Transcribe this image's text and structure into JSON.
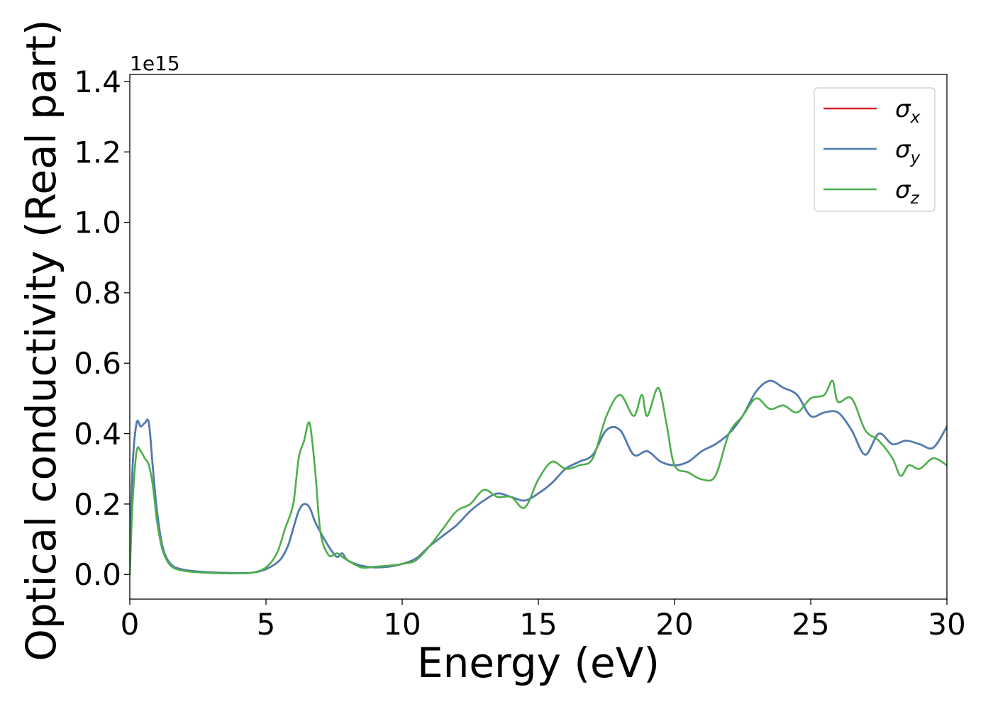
{
  "chart_data": {
    "type": "line",
    "xlabel": "Energy (eV)",
    "ylabel": "Optical conductivity (Real part)",
    "y_offset_label": "1e15",
    "xlim": [
      0,
      30
    ],
    "ylim": [
      -0.07,
      1.42
    ],
    "x_ticks": [
      0,
      5,
      10,
      15,
      20,
      25,
      30
    ],
    "x_tick_labels": [
      "0",
      "5",
      "10",
      "15",
      "20",
      "25",
      "30"
    ],
    "y_ticks": [
      0.0,
      0.2,
      0.4,
      0.6,
      0.8,
      1.0,
      1.2,
      1.4
    ],
    "y_tick_labels": [
      "0.0",
      "0.2",
      "0.4",
      "0.6",
      "0.8",
      "1.0",
      "1.2",
      "1.4"
    ],
    "grid": false,
    "legend_position": "top-right",
    "series": [
      {
        "name": "σx",
        "symbol": "σ",
        "subscript": "x",
        "color": "#d62728",
        "x": [
          0,
          0.1,
          0.25,
          0.4,
          0.55,
          0.7,
          0.85,
          1.0,
          1.2,
          1.5,
          2.0,
          3.0,
          4.0,
          4.5,
          5.0,
          5.5,
          5.8,
          6.0,
          6.2,
          6.4,
          6.6,
          6.8,
          7.0,
          7.3,
          7.6,
          7.8,
          8.0,
          8.5,
          9.0,
          9.5,
          10.0,
          10.5,
          11.0,
          11.5,
          12.0,
          12.5,
          13.0,
          13.5,
          14.0,
          14.5,
          15.0,
          15.5,
          16.0,
          16.5,
          17.0,
          17.5,
          18.0,
          18.5,
          19.0,
          19.5,
          20.0,
          20.5,
          21.0,
          21.5,
          22.0,
          22.5,
          23.0,
          23.5,
          24.0,
          24.5,
          25.0,
          25.5,
          26.0,
          26.5,
          27.0,
          27.5,
          28.0,
          28.5,
          29.0,
          29.5,
          30.0
        ],
        "y": [
          0.0,
          0.3,
          0.43,
          0.42,
          0.43,
          0.43,
          0.3,
          0.18,
          0.08,
          0.03,
          0.013,
          0.006,
          0.004,
          0.005,
          0.015,
          0.04,
          0.08,
          0.13,
          0.18,
          0.2,
          0.19,
          0.15,
          0.12,
          0.08,
          0.05,
          0.06,
          0.04,
          0.025,
          0.02,
          0.022,
          0.03,
          0.045,
          0.08,
          0.11,
          0.14,
          0.18,
          0.21,
          0.23,
          0.22,
          0.21,
          0.23,
          0.26,
          0.3,
          0.32,
          0.34,
          0.41,
          0.41,
          0.34,
          0.35,
          0.32,
          0.31,
          0.32,
          0.35,
          0.37,
          0.4,
          0.45,
          0.52,
          0.55,
          0.53,
          0.51,
          0.45,
          0.46,
          0.46,
          0.41,
          0.34,
          0.4,
          0.37,
          0.38,
          0.37,
          0.36,
          0.42
        ]
      },
      {
        "name": "σy",
        "symbol": "σ",
        "subscript": "y",
        "color": "#4a7eb5",
        "x": [
          0,
          0.1,
          0.25,
          0.4,
          0.55,
          0.7,
          0.85,
          1.0,
          1.2,
          1.5,
          2.0,
          3.0,
          4.0,
          4.5,
          5.0,
          5.5,
          5.8,
          6.0,
          6.2,
          6.4,
          6.6,
          6.8,
          7.0,
          7.3,
          7.6,
          7.8,
          8.0,
          8.5,
          9.0,
          9.5,
          10.0,
          10.5,
          11.0,
          11.5,
          12.0,
          12.5,
          13.0,
          13.5,
          14.0,
          14.5,
          15.0,
          15.5,
          16.0,
          16.5,
          17.0,
          17.5,
          18.0,
          18.5,
          19.0,
          19.5,
          20.0,
          20.5,
          21.0,
          21.5,
          22.0,
          22.5,
          23.0,
          23.5,
          24.0,
          24.5,
          25.0,
          25.5,
          26.0,
          26.5,
          27.0,
          27.5,
          28.0,
          28.5,
          29.0,
          29.5,
          30.0
        ],
        "y": [
          0.0,
          0.3,
          0.43,
          0.42,
          0.43,
          0.43,
          0.3,
          0.18,
          0.08,
          0.03,
          0.013,
          0.006,
          0.004,
          0.005,
          0.015,
          0.04,
          0.08,
          0.13,
          0.18,
          0.2,
          0.19,
          0.15,
          0.12,
          0.08,
          0.05,
          0.06,
          0.04,
          0.025,
          0.02,
          0.022,
          0.03,
          0.045,
          0.08,
          0.11,
          0.14,
          0.18,
          0.21,
          0.23,
          0.22,
          0.21,
          0.23,
          0.26,
          0.3,
          0.32,
          0.34,
          0.41,
          0.41,
          0.34,
          0.35,
          0.32,
          0.31,
          0.32,
          0.35,
          0.37,
          0.4,
          0.45,
          0.52,
          0.55,
          0.53,
          0.51,
          0.45,
          0.46,
          0.46,
          0.41,
          0.34,
          0.4,
          0.37,
          0.38,
          0.37,
          0.36,
          0.42
        ]
      },
      {
        "name": "σz",
        "symbol": "σ",
        "subscript": "z",
        "color": "#4daf4a",
        "x": [
          0,
          0.1,
          0.25,
          0.4,
          0.55,
          0.7,
          0.85,
          1.0,
          1.2,
          1.5,
          2.0,
          3.0,
          4.0,
          4.5,
          5.0,
          5.4,
          5.7,
          6.0,
          6.2,
          6.4,
          6.6,
          6.8,
          7.0,
          7.3,
          7.6,
          7.8,
          8.0,
          8.5,
          9.0,
          9.5,
          10.0,
          10.5,
          11.0,
          11.5,
          12.0,
          12.5,
          13.0,
          13.5,
          14.0,
          14.5,
          15.0,
          15.5,
          16.0,
          16.5,
          17.0,
          17.5,
          18.0,
          18.5,
          18.8,
          19.0,
          19.4,
          19.7,
          20.0,
          20.5,
          21.0,
          21.5,
          22.0,
          22.5,
          23.0,
          23.5,
          24.0,
          24.5,
          25.0,
          25.5,
          25.8,
          26.0,
          26.5,
          27.0,
          27.5,
          28.0,
          28.3,
          28.6,
          29.0,
          29.5,
          30.0
        ],
        "y": [
          0.0,
          0.2,
          0.35,
          0.35,
          0.33,
          0.31,
          0.25,
          0.15,
          0.07,
          0.025,
          0.01,
          0.004,
          0.003,
          0.005,
          0.02,
          0.06,
          0.13,
          0.2,
          0.33,
          0.38,
          0.43,
          0.3,
          0.12,
          0.055,
          0.06,
          0.05,
          0.04,
          0.02,
          0.022,
          0.025,
          0.03,
          0.04,
          0.08,
          0.13,
          0.18,
          0.2,
          0.24,
          0.22,
          0.22,
          0.19,
          0.27,
          0.32,
          0.3,
          0.31,
          0.33,
          0.45,
          0.51,
          0.45,
          0.51,
          0.45,
          0.53,
          0.43,
          0.31,
          0.29,
          0.27,
          0.28,
          0.4,
          0.45,
          0.5,
          0.47,
          0.48,
          0.46,
          0.5,
          0.51,
          0.55,
          0.49,
          0.5,
          0.41,
          0.38,
          0.33,
          0.28,
          0.31,
          0.3,
          0.33,
          0.31
        ]
      }
    ]
  }
}
